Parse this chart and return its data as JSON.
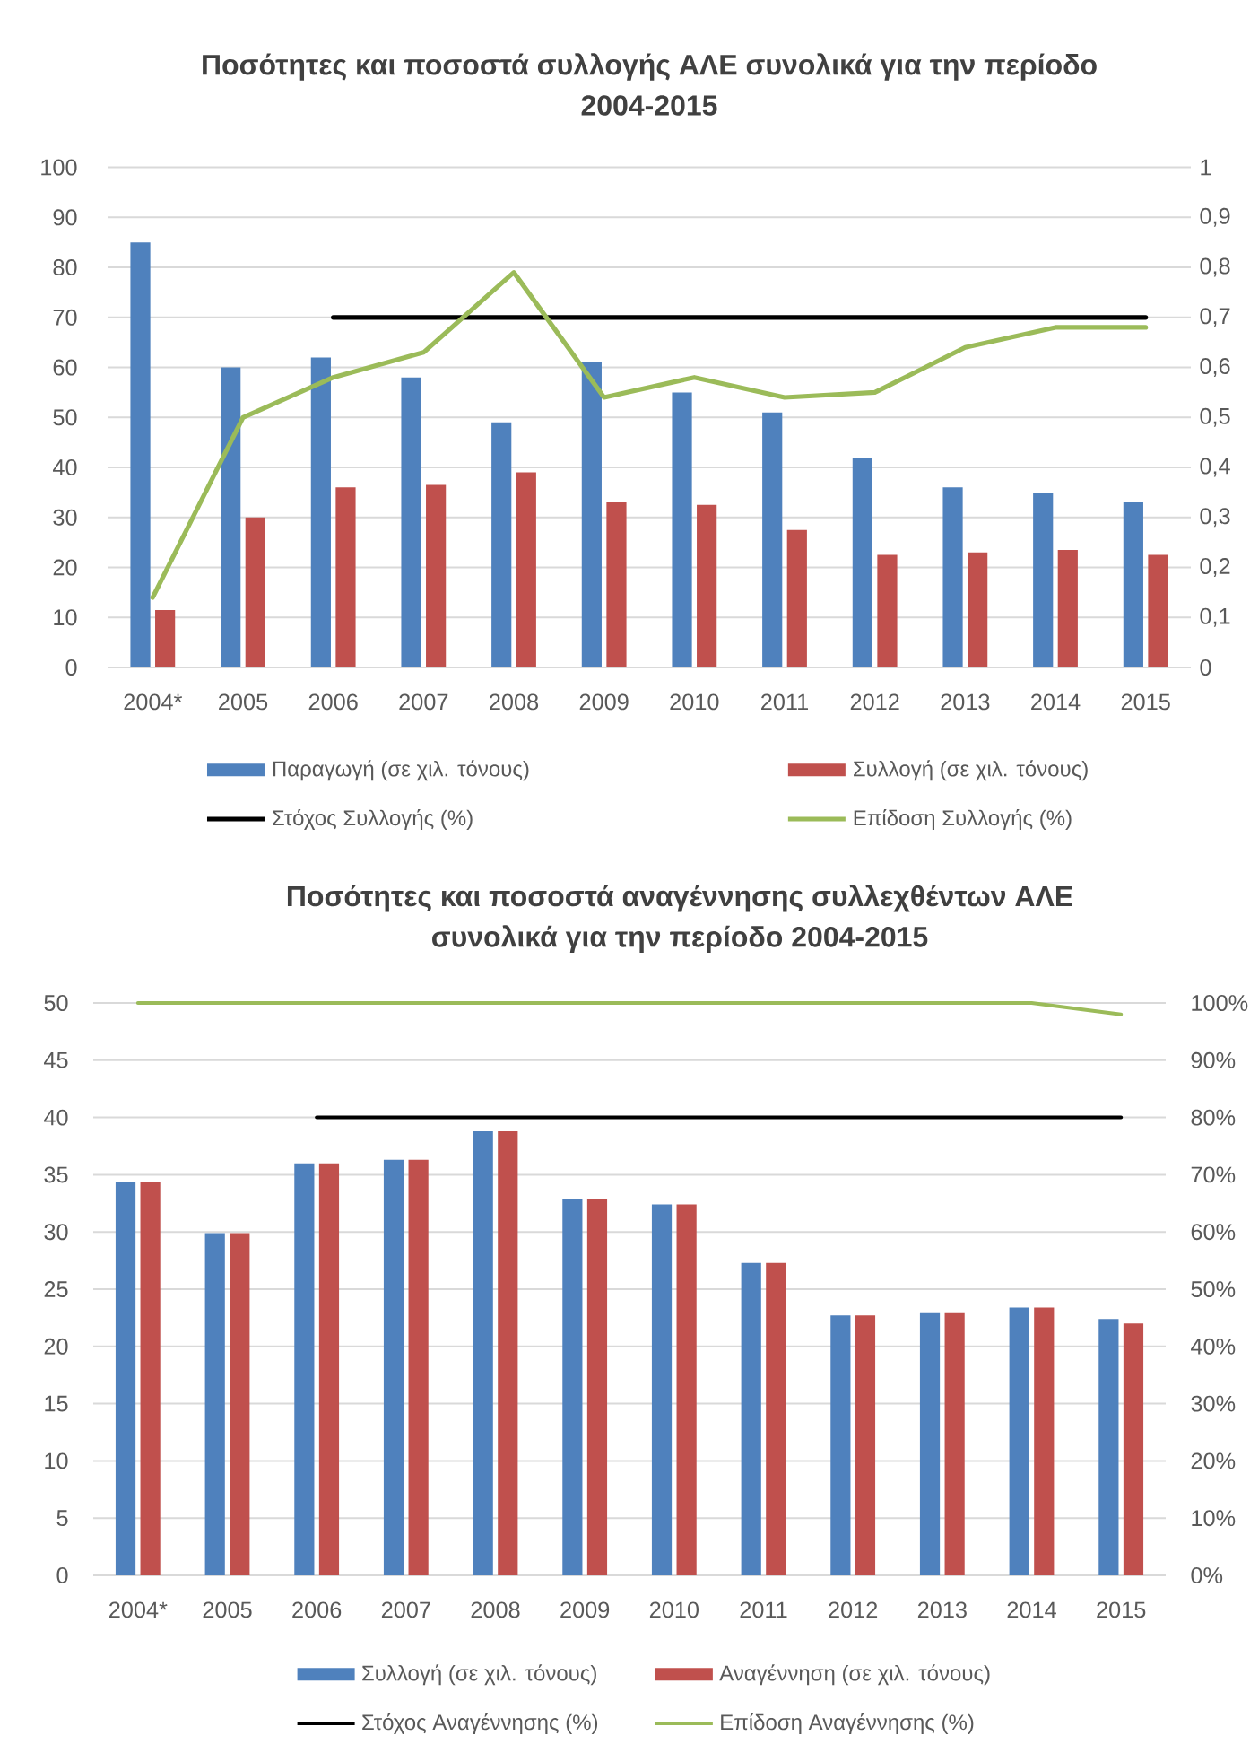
{
  "chart_data": [
    {
      "type": "bar",
      "title": "Ποσότητες και ποσοστά συλλογής ΑΛΕ συνολικά για την περίοδο 2004-2015",
      "categories": [
        "2004*",
        "2005",
        "2006",
        "2007",
        "2008",
        "2009",
        "2010",
        "2011",
        "2012",
        "2013",
        "2014",
        "2015"
      ],
      "series": [
        {
          "name": "Παραγωγή (σε χιλ. τόνους)",
          "color": "#4f81bd",
          "values": [
            85,
            60,
            62,
            58,
            49,
            61,
            55,
            51,
            42,
            36,
            35,
            33
          ]
        },
        {
          "name": "Συλλογή (σε χιλ. τόνους)",
          "color": "#c0504d",
          "values": [
            11.5,
            30,
            36,
            36.5,
            39,
            33,
            32.5,
            27.5,
            22.5,
            23,
            23.5,
            22.5
          ]
        },
        {
          "name": "Στόχος Συλλογής (%)",
          "type": "line",
          "axis": "y2",
          "color": "#000000",
          "values": [
            null,
            null,
            0.7,
            0.7,
            0.7,
            0.7,
            0.7,
            0.7,
            0.7,
            0.7,
            0.7,
            0.7
          ]
        },
        {
          "name": "Επίδοση Συλλογής (%)",
          "type": "line",
          "axis": "y2",
          "color": "#9bbb59",
          "values": [
            0.14,
            0.5,
            0.58,
            0.63,
            0.79,
            0.54,
            0.58,
            0.54,
            0.55,
            0.64,
            0.68,
            0.68
          ]
        }
      ],
      "ylim": [
        0,
        100
      ],
      "yticks": [
        0,
        10,
        20,
        30,
        40,
        50,
        60,
        70,
        80,
        90,
        100
      ],
      "y2lim": [
        0,
        1
      ],
      "y2ticks": [
        0,
        {
          "value": 0.1,
          "label": "0,1"
        },
        {
          "value": 0.2,
          "label": "0,2"
        },
        {
          "value": 0.3,
          "label": "0,3"
        },
        {
          "value": 0.4,
          "label": "0,4"
        },
        {
          "value": 0.5,
          "label": "0,5"
        },
        {
          "value": 0.6,
          "label": "0,6"
        },
        {
          "value": 0.7,
          "label": "0,7"
        },
        {
          "value": 0.8,
          "label": "0,8"
        },
        {
          "value": 0.9,
          "label": "0,9"
        },
        1
      ],
      "grid": "y",
      "legend": "bottom"
    },
    {
      "type": "bar",
      "title": "Ποσότητες και ποσοστά αναγέννησης συλλεχθέντων ΑΛΕ συνολικά για την περίοδο 2004-2015",
      "categories": [
        "2004*",
        "2005",
        "2006",
        "2007",
        "2008",
        "2009",
        "2010",
        "2011",
        "2012",
        "2013",
        "2014",
        "2015"
      ],
      "series": [
        {
          "name": "Συλλογή (σε χιλ. τόνους)",
          "color": "#4f81bd",
          "values": [
            34.4,
            29.9,
            36,
            36.3,
            38.8,
            32.9,
            32.4,
            27.3,
            22.7,
            22.9,
            23.4,
            22.4
          ]
        },
        {
          "name": "Αναγέννηση (σε χιλ. τόνους)",
          "color": "#c0504d",
          "values": [
            34.4,
            29.9,
            36,
            36.3,
            38.8,
            32.9,
            32.4,
            27.3,
            22.7,
            22.9,
            23.4,
            22
          ]
        },
        {
          "name": "Στόχος Αναγέννησης (%)",
          "type": "line",
          "axis": "y2",
          "color": "#000000",
          "values": [
            null,
            null,
            80,
            80,
            80,
            80,
            80,
            80,
            80,
            80,
            80,
            80
          ]
        },
        {
          "name": "Επίδοση Αναγέννησης (%)",
          "type": "line",
          "axis": "y2",
          "color": "#9bbb59",
          "values": [
            100,
            100,
            100,
            100,
            100,
            100,
            100,
            100,
            100,
            100,
            100,
            98
          ]
        }
      ],
      "ylim": [
        0,
        50
      ],
      "yticks": [
        0,
        5,
        10,
        15,
        20,
        25,
        30,
        35,
        40,
        45,
        50
      ],
      "y2lim": [
        0,
        100
      ],
      "y2ticks": [
        {
          "value": 0,
          "label": "0%"
        },
        {
          "value": 10,
          "label": "10%"
        },
        {
          "value": 20,
          "label": "20%"
        },
        {
          "value": 30,
          "label": "30%"
        },
        {
          "value": 40,
          "label": "40%"
        },
        {
          "value": 50,
          "label": "50%"
        },
        {
          "value": 60,
          "label": "60%"
        },
        {
          "value": 70,
          "label": "70%"
        },
        {
          "value": 80,
          "label": "80%"
        },
        {
          "value": 90,
          "label": "90%"
        },
        {
          "value": 100,
          "label": "100%"
        }
      ],
      "grid": "y",
      "legend": "bottom"
    }
  ]
}
